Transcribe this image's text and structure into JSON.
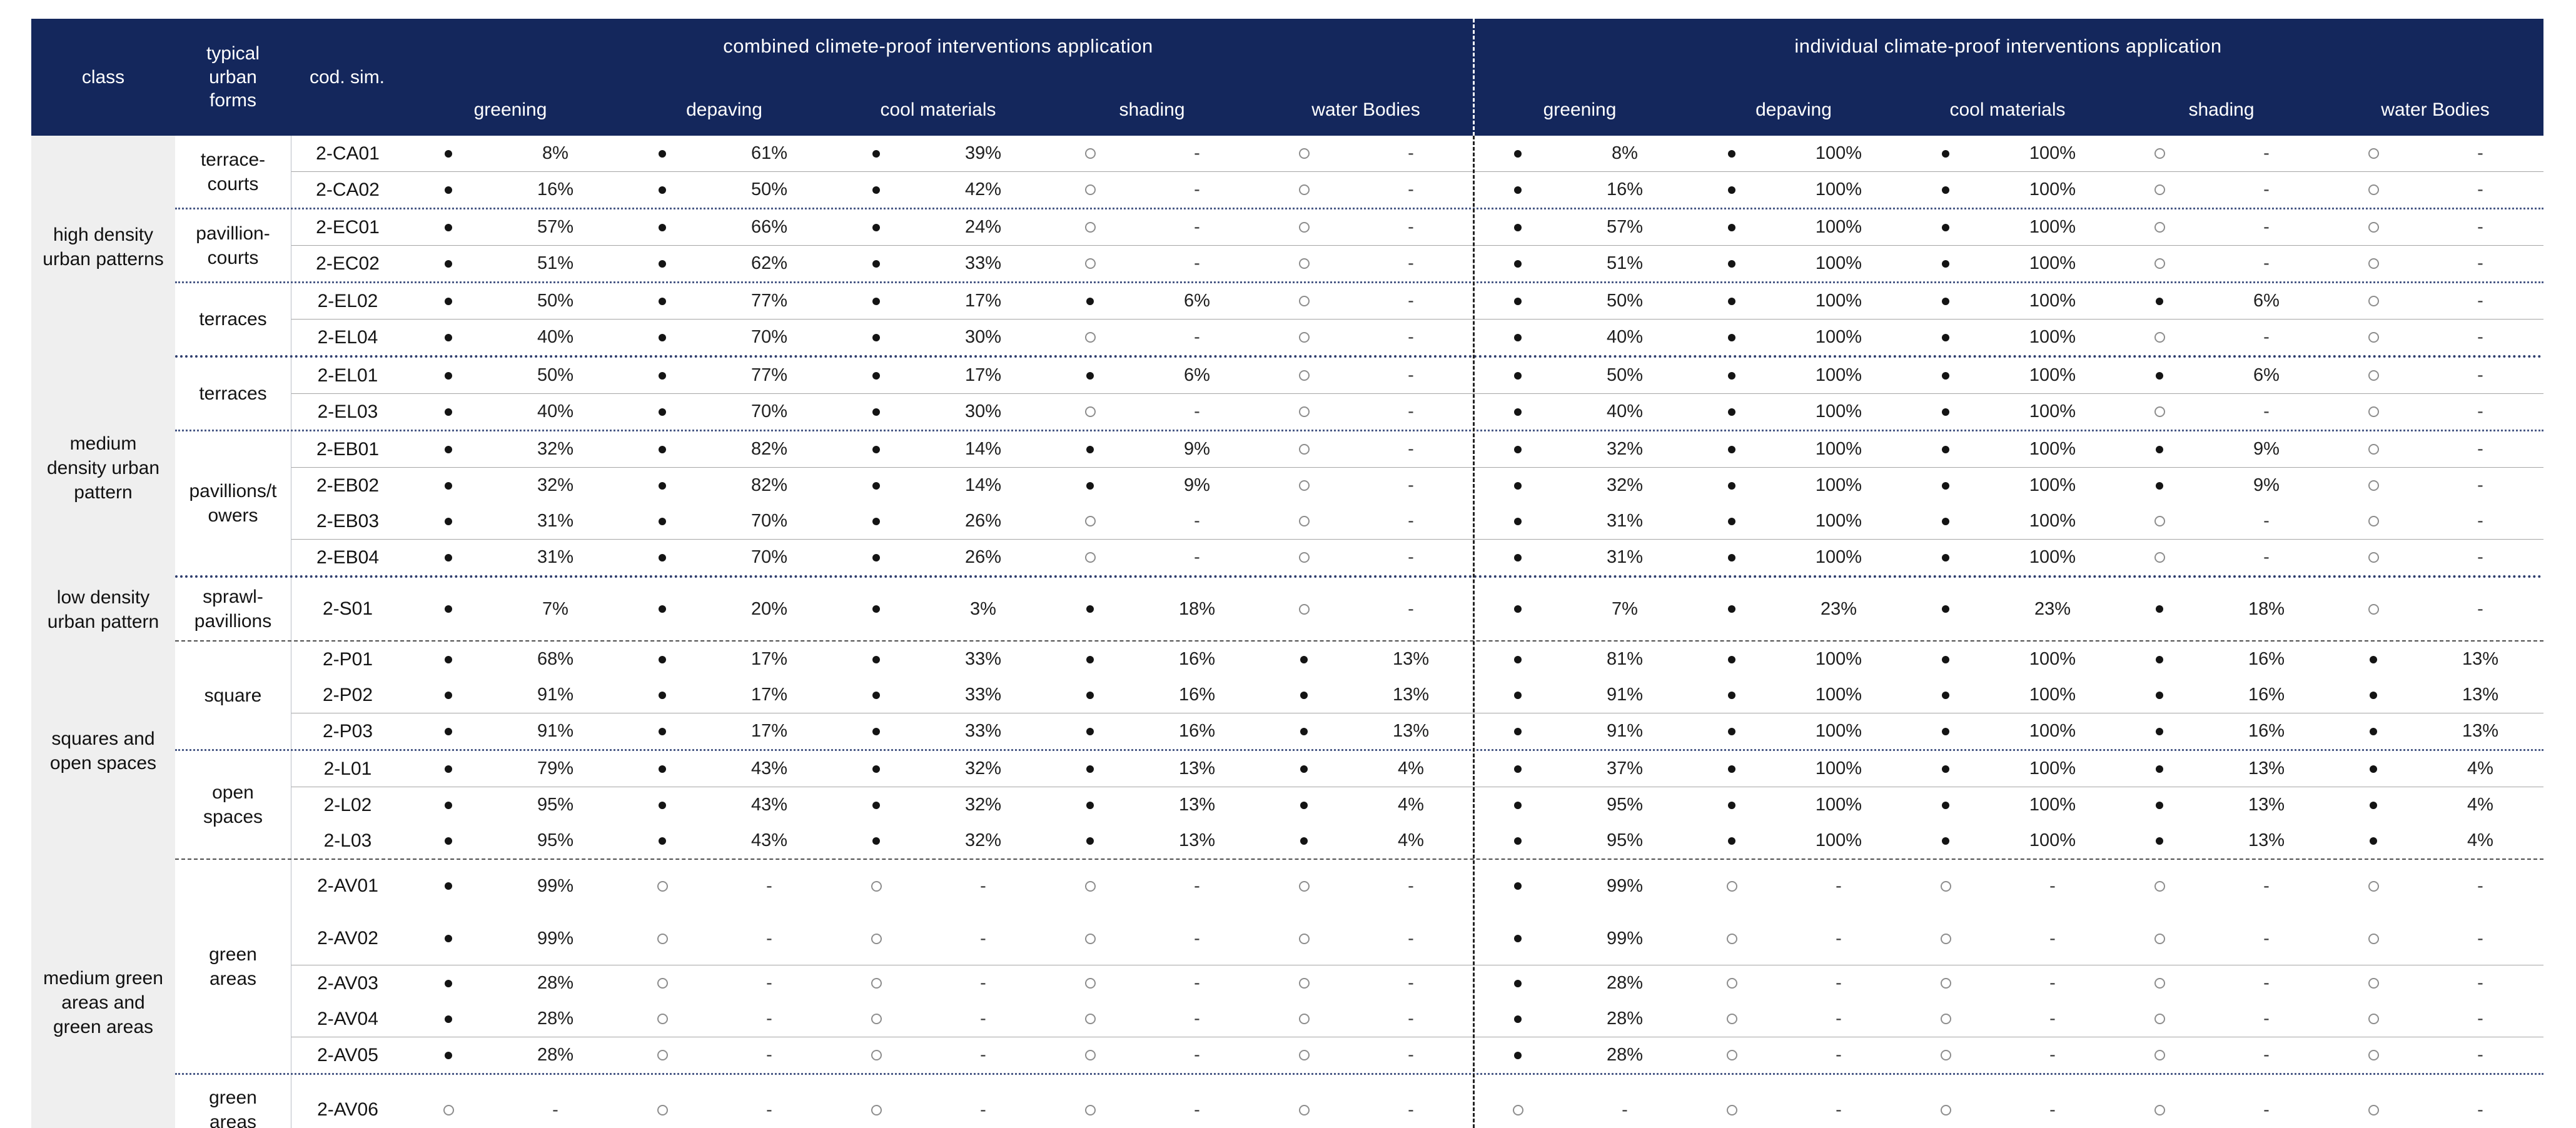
{
  "header": {
    "class_label": "class",
    "urban_label": "typical\nurban\nforms",
    "cod_label": "cod. sim.",
    "groups": [
      {
        "title": "combined climete-proof interventions application",
        "subs": [
          "greening",
          "depaving",
          "cool materials",
          "shading",
          "water Bodies"
        ]
      },
      {
        "title": "individual climate-proof interventions application",
        "subs": [
          "greening",
          "depaving",
          "cool materials",
          "shading",
          "water Bodies"
        ]
      }
    ]
  },
  "marks": {
    "applied": "filled-dot",
    "not_applied": "open-circle",
    "no_value": "-"
  },
  "colors": {
    "header_bg": "#14275c",
    "header_text": "#ffffff",
    "class_column_bg": "#efefef",
    "row_line": "#a5a5a5",
    "subgroup_dotted": "#4a5a86",
    "class_dotted": "#2f3e6d",
    "dash_separator": "#4d4d4d",
    "body_text": "#1f1f1f"
  },
  "body": {
    "classes": [
      {
        "label": "high density\nurban patterns",
        "sep_after": "heavydot",
        "subgroups": [
          {
            "label": "terrace-\ncourts",
            "rows": [
              {
                "code": "2-CA01",
                "sep": "solid",
                "c": [
                  "8%",
                  "61%",
                  "39%",
                  "-",
                  "-"
                ],
                "i": [
                  "8%",
                  "100%",
                  "100%",
                  "-",
                  "-"
                ]
              },
              {
                "code": "2-CA02",
                "c": [
                  "16%",
                  "50%",
                  "42%",
                  "-",
                  "-"
                ],
                "i": [
                  "16%",
                  "100%",
                  "100%",
                  "-",
                  "-"
                ]
              }
            ]
          },
          {
            "label": "pavillion-\ncourts",
            "rows": [
              {
                "code": "2-EC01",
                "sep": "solid",
                "c": [
                  "57%",
                  "66%",
                  "24%",
                  "-",
                  "-"
                ],
                "i": [
                  "57%",
                  "100%",
                  "100%",
                  "-",
                  "-"
                ]
              },
              {
                "code": "2-EC02",
                "c": [
                  "51%",
                  "62%",
                  "33%",
                  "-",
                  "-"
                ],
                "i": [
                  "51%",
                  "100%",
                  "100%",
                  "-",
                  "-"
                ]
              }
            ]
          },
          {
            "label": "terraces",
            "rows": [
              {
                "code": "2-EL02",
                "sep": "solid",
                "c": [
                  "50%",
                  "77%",
                  "17%",
                  "6%",
                  "-"
                ],
                "i": [
                  "50%",
                  "100%",
                  "100%",
                  "6%",
                  "-"
                ]
              },
              {
                "code": "2-EL04",
                "c": [
                  "40%",
                  "70%",
                  "30%",
                  "-",
                  "-"
                ],
                "i": [
                  "40%",
                  "100%",
                  "100%",
                  "-",
                  "-"
                ]
              }
            ]
          }
        ]
      },
      {
        "label": "medium\ndensity urban\npattern",
        "sep_after": "heavydot",
        "subgroups": [
          {
            "label": "terraces",
            "rows": [
              {
                "code": "2-EL01",
                "sep": "solid",
                "c": [
                  "50%",
                  "77%",
                  "17%",
                  "6%",
                  "-"
                ],
                "i": [
                  "50%",
                  "100%",
                  "100%",
                  "6%",
                  "-"
                ]
              },
              {
                "code": "2-EL03",
                "c": [
                  "40%",
                  "70%",
                  "30%",
                  "-",
                  "-"
                ],
                "i": [
                  "40%",
                  "100%",
                  "100%",
                  "-",
                  "-"
                ]
              }
            ]
          },
          {
            "label": "pavillions/t\nowers",
            "rows": [
              {
                "code": "2-EB01",
                "sep": "solid",
                "c": [
                  "32%",
                  "82%",
                  "14%",
                  "9%",
                  "-"
                ],
                "i": [
                  "32%",
                  "100%",
                  "100%",
                  "9%",
                  "-"
                ]
              },
              {
                "code": "2-EB02",
                "c": [
                  "32%",
                  "82%",
                  "14%",
                  "9%",
                  "-"
                ],
                "i": [
                  "32%",
                  "100%",
                  "100%",
                  "9%",
                  "-"
                ]
              },
              {
                "code": "2-EB03",
                "sep": "solid",
                "c": [
                  "31%",
                  "70%",
                  "26%",
                  "-",
                  "-"
                ],
                "i": [
                  "31%",
                  "100%",
                  "100%",
                  "-",
                  "-"
                ]
              },
              {
                "code": "2-EB04",
                "c": [
                  "31%",
                  "70%",
                  "26%",
                  "-",
                  "-"
                ],
                "i": [
                  "31%",
                  "100%",
                  "100%",
                  "-",
                  "-"
                ]
              }
            ]
          }
        ]
      },
      {
        "label": "low density\nurban pattern",
        "sep_after": "dash",
        "subgroups": [
          {
            "label": "sprawl-\npavillions",
            "rows": [
              {
                "code": "2-S01",
                "h": 100,
                "c": [
                  "7%",
                  "20%",
                  "3%",
                  "18%",
                  "-"
                ],
                "i": [
                  "7%",
                  "23%",
                  "23%",
                  "18%",
                  "-"
                ]
              }
            ]
          }
        ]
      },
      {
        "label": "squares and\nopen spaces",
        "sep_after": "dash",
        "subgroups": [
          {
            "label": "square",
            "rows": [
              {
                "code": "2-P01",
                "c": [
                  "68%",
                  "17%",
                  "33%",
                  "16%",
                  "13%"
                ],
                "i": [
                  "81%",
                  "100%",
                  "100%",
                  "16%",
                  "13%"
                ]
              },
              {
                "code": "2-P02",
                "sep": "solid",
                "c": [
                  "91%",
                  "17%",
                  "33%",
                  "16%",
                  "13%"
                ],
                "i": [
                  "91%",
                  "100%",
                  "100%",
                  "16%",
                  "13%"
                ]
              },
              {
                "code": "2-P03",
                "c": [
                  "91%",
                  "17%",
                  "33%",
                  "16%",
                  "13%"
                ],
                "i": [
                  "91%",
                  "100%",
                  "100%",
                  "16%",
                  "13%"
                ]
              }
            ]
          },
          {
            "label": "open\nspaces",
            "rows": [
              {
                "code": "2-L01",
                "sep": "solid",
                "c": [
                  "79%",
                  "43%",
                  "32%",
                  "13%",
                  "4%"
                ],
                "i": [
                  "37%",
                  "100%",
                  "100%",
                  "13%",
                  "4%"
                ]
              },
              {
                "code": "2-L02",
                "c": [
                  "95%",
                  "43%",
                  "32%",
                  "13%",
                  "4%"
                ],
                "i": [
                  "95%",
                  "100%",
                  "100%",
                  "13%",
                  "4%"
                ]
              },
              {
                "code": "2-L03",
                "c": [
                  "95%",
                  "43%",
                  "32%",
                  "13%",
                  "4%"
                ],
                "i": [
                  "95%",
                  "100%",
                  "100%",
                  "13%",
                  "4%"
                ]
              }
            ]
          }
        ]
      },
      {
        "label": "medium green\nareas and\ngreen areas",
        "sep_after": "none",
        "subgroups": [
          {
            "label": "green\nareas",
            "rows": [
              {
                "code": "2-AV01",
                "h": 84,
                "c": [
                  "99%",
                  "-",
                  "-",
                  "-",
                  "-"
                ],
                "i": [
                  "99%",
                  "-",
                  "-",
                  "-",
                  "-"
                ]
              },
              {
                "code": "2-AV02",
                "h": 84,
                "sep": "solid",
                "c": [
                  "99%",
                  "-",
                  "-",
                  "-",
                  "-"
                ],
                "i": [
                  "99%",
                  "-",
                  "-",
                  "-",
                  "-"
                ]
              },
              {
                "code": "2-AV03",
                "c": [
                  "28%",
                  "-",
                  "-",
                  "-",
                  "-"
                ],
                "i": [
                  "28%",
                  "-",
                  "-",
                  "-",
                  "-"
                ]
              },
              {
                "code": "2-AV04",
                "sep": "solid",
                "c": [
                  "28%",
                  "-",
                  "-",
                  "-",
                  "-"
                ],
                "i": [
                  "28%",
                  "-",
                  "-",
                  "-",
                  "-"
                ]
              },
              {
                "code": "2-AV05",
                "c": [
                  "28%",
                  "-",
                  "-",
                  "-",
                  "-"
                ],
                "i": [
                  "28%",
                  "-",
                  "-",
                  "-",
                  "-"
                ]
              }
            ]
          },
          {
            "label": "green\nareas",
            "rows": [
              {
                "code": "2-AV06",
                "h": 112,
                "c": [
                  "-",
                  "-",
                  "-",
                  "-",
                  "-"
                ],
                "i": [
                  "-",
                  "-",
                  "-",
                  "-",
                  "-"
                ]
              }
            ]
          }
        ]
      }
    ]
  }
}
